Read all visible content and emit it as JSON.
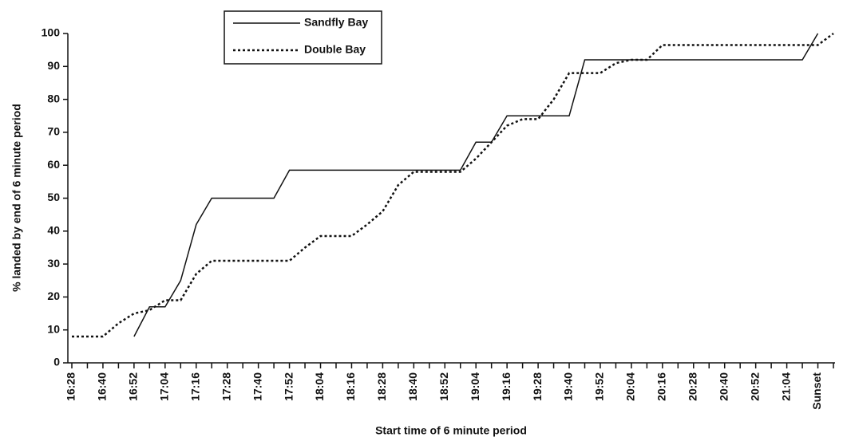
{
  "chart_data": {
    "type": "line",
    "xlabel": "Start time of 6 minute period",
    "ylabel": "% landed by end of 6 minute period",
    "categories": [
      "16:28",
      null,
      "16:40",
      null,
      "16:52",
      null,
      "17:04",
      null,
      "17:16",
      null,
      "17:28",
      null,
      "17:40",
      null,
      "17:52",
      null,
      "18:04",
      null,
      "18:16",
      null,
      "18:28",
      null,
      "18:40",
      null,
      "18:52",
      null,
      "19:04",
      null,
      "19:16",
      null,
      "19:28",
      null,
      "19:40",
      null,
      "19:52",
      null,
      "20:04",
      null,
      "20:16",
      null,
      "20:28",
      null,
      "20:40",
      null,
      "20:52",
      null,
      "21:04",
      null,
      "Sunset",
      null
    ],
    "series": [
      {
        "name": "Sandfly Bay",
        "color": "#111111",
        "dash": false,
        "values": [
          null,
          null,
          null,
          null,
          8,
          17,
          17,
          25,
          42,
          50,
          50,
          50,
          50,
          50,
          58.5,
          58.5,
          58.5,
          58.5,
          58.5,
          58.5,
          58.5,
          58.5,
          58.5,
          58.5,
          58.5,
          58.5,
          67,
          67,
          75,
          75,
          75,
          75,
          75,
          92,
          92,
          92,
          92,
          92,
          92,
          92,
          92,
          92,
          92,
          92,
          92,
          92,
          92,
          92,
          100,
          null
        ]
      },
      {
        "name": "Double Bay",
        "color": "#111111",
        "dash": true,
        "values": [
          8,
          8,
          8,
          12,
          15,
          16,
          19,
          19,
          27,
          31,
          31,
          31,
          31,
          31,
          31,
          35,
          38.5,
          38.5,
          38.5,
          42,
          46,
          54,
          58,
          58,
          58,
          58,
          62,
          67,
          72,
          74,
          74,
          80,
          88,
          88,
          88,
          91,
          92,
          92,
          96.5,
          96.5,
          96.5,
          96.5,
          96.5,
          96.5,
          96.5,
          96.5,
          96.5,
          96.5,
          96.5,
          100
        ]
      }
    ],
    "ylim": [
      0,
      100
    ],
    "yticks": [
      0,
      10,
      20,
      30,
      40,
      50,
      60,
      70,
      80,
      90,
      100
    ],
    "grid": false,
    "legend": "top-left"
  }
}
